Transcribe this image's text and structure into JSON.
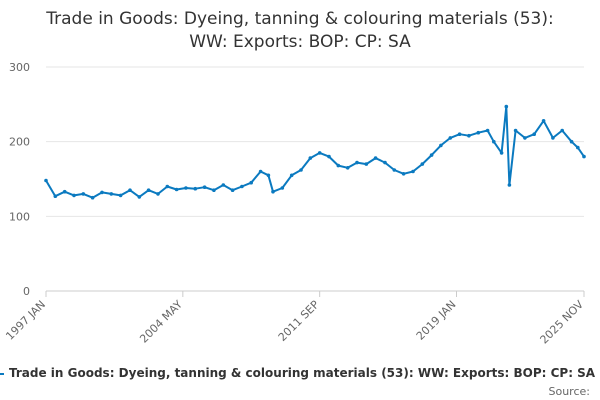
{
  "chart_data": {
    "type": "line",
    "title_lines": [
      "Trade in Goods: Dyeing, tanning & colouring materials (53):",
      "WW: Exports: BOP: CP: SA"
    ],
    "xlabel": "",
    "ylabel": "",
    "x_range": [
      "1997 JAN",
      "2025 NOV"
    ],
    "ylim": [
      0,
      300
    ],
    "y_ticks": [
      0,
      100,
      200,
      300
    ],
    "x_ticks": [
      "1997 JAN",
      "2004 MAY",
      "2011 SEP",
      "2019 JAN",
      "2025 NOV"
    ],
    "grid": true,
    "legend_position": "bottom",
    "series": [
      {
        "name": "Trade in Goods: Dyeing, tanning & colouring materials (53): WW: Exports: BOP: CP: SA",
        "color": "#0b7ac0",
        "points": [
          [
            "1997-01",
            148
          ],
          [
            "1997-07",
            127
          ],
          [
            "1998-01",
            133
          ],
          [
            "1998-07",
            128
          ],
          [
            "1999-01",
            130
          ],
          [
            "1999-07",
            125
          ],
          [
            "2000-01",
            132
          ],
          [
            "2000-07",
            130
          ],
          [
            "2001-01",
            128
          ],
          [
            "2001-07",
            135
          ],
          [
            "2002-01",
            126
          ],
          [
            "2002-07",
            135
          ],
          [
            "2003-01",
            130
          ],
          [
            "2003-07",
            140
          ],
          [
            "2004-01",
            136
          ],
          [
            "2004-07",
            138
          ],
          [
            "2005-01",
            137
          ],
          [
            "2005-07",
            139
          ],
          [
            "2006-01",
            135
          ],
          [
            "2006-07",
            142
          ],
          [
            "2007-01",
            135
          ],
          [
            "2007-07",
            140
          ],
          [
            "2008-01",
            145
          ],
          [
            "2008-07",
            160
          ],
          [
            "2008-12",
            155
          ],
          [
            "2009-03",
            133
          ],
          [
            "2009-09",
            138
          ],
          [
            "2010-03",
            155
          ],
          [
            "2010-09",
            162
          ],
          [
            "2011-03",
            178
          ],
          [
            "2011-09",
            185
          ],
          [
            "2012-03",
            180
          ],
          [
            "2012-09",
            168
          ],
          [
            "2013-03",
            165
          ],
          [
            "2013-09",
            172
          ],
          [
            "2014-03",
            170
          ],
          [
            "2014-09",
            178
          ],
          [
            "2015-03",
            172
          ],
          [
            "2015-09",
            162
          ],
          [
            "2016-03",
            157
          ],
          [
            "2016-09",
            160
          ],
          [
            "2017-03",
            170
          ],
          [
            "2017-09",
            182
          ],
          [
            "2018-03",
            195
          ],
          [
            "2018-09",
            205
          ],
          [
            "2019-03",
            210
          ],
          [
            "2019-09",
            208
          ],
          [
            "2020-03",
            212
          ],
          [
            "2020-09",
            215
          ],
          [
            "2021-01",
            200
          ],
          [
            "2021-06",
            185
          ],
          [
            "2021-09",
            247
          ],
          [
            "2021-11",
            142
          ],
          [
            "2022-03",
            215
          ],
          [
            "2022-09",
            205
          ],
          [
            "2023-03",
            210
          ],
          [
            "2023-09",
            228
          ],
          [
            "2024-03",
            205
          ],
          [
            "2024-09",
            215
          ],
          [
            "2025-03",
            200
          ],
          [
            "2025-07",
            192
          ],
          [
            "2025-11",
            180
          ]
        ]
      }
    ]
  },
  "source_label": "Source:"
}
